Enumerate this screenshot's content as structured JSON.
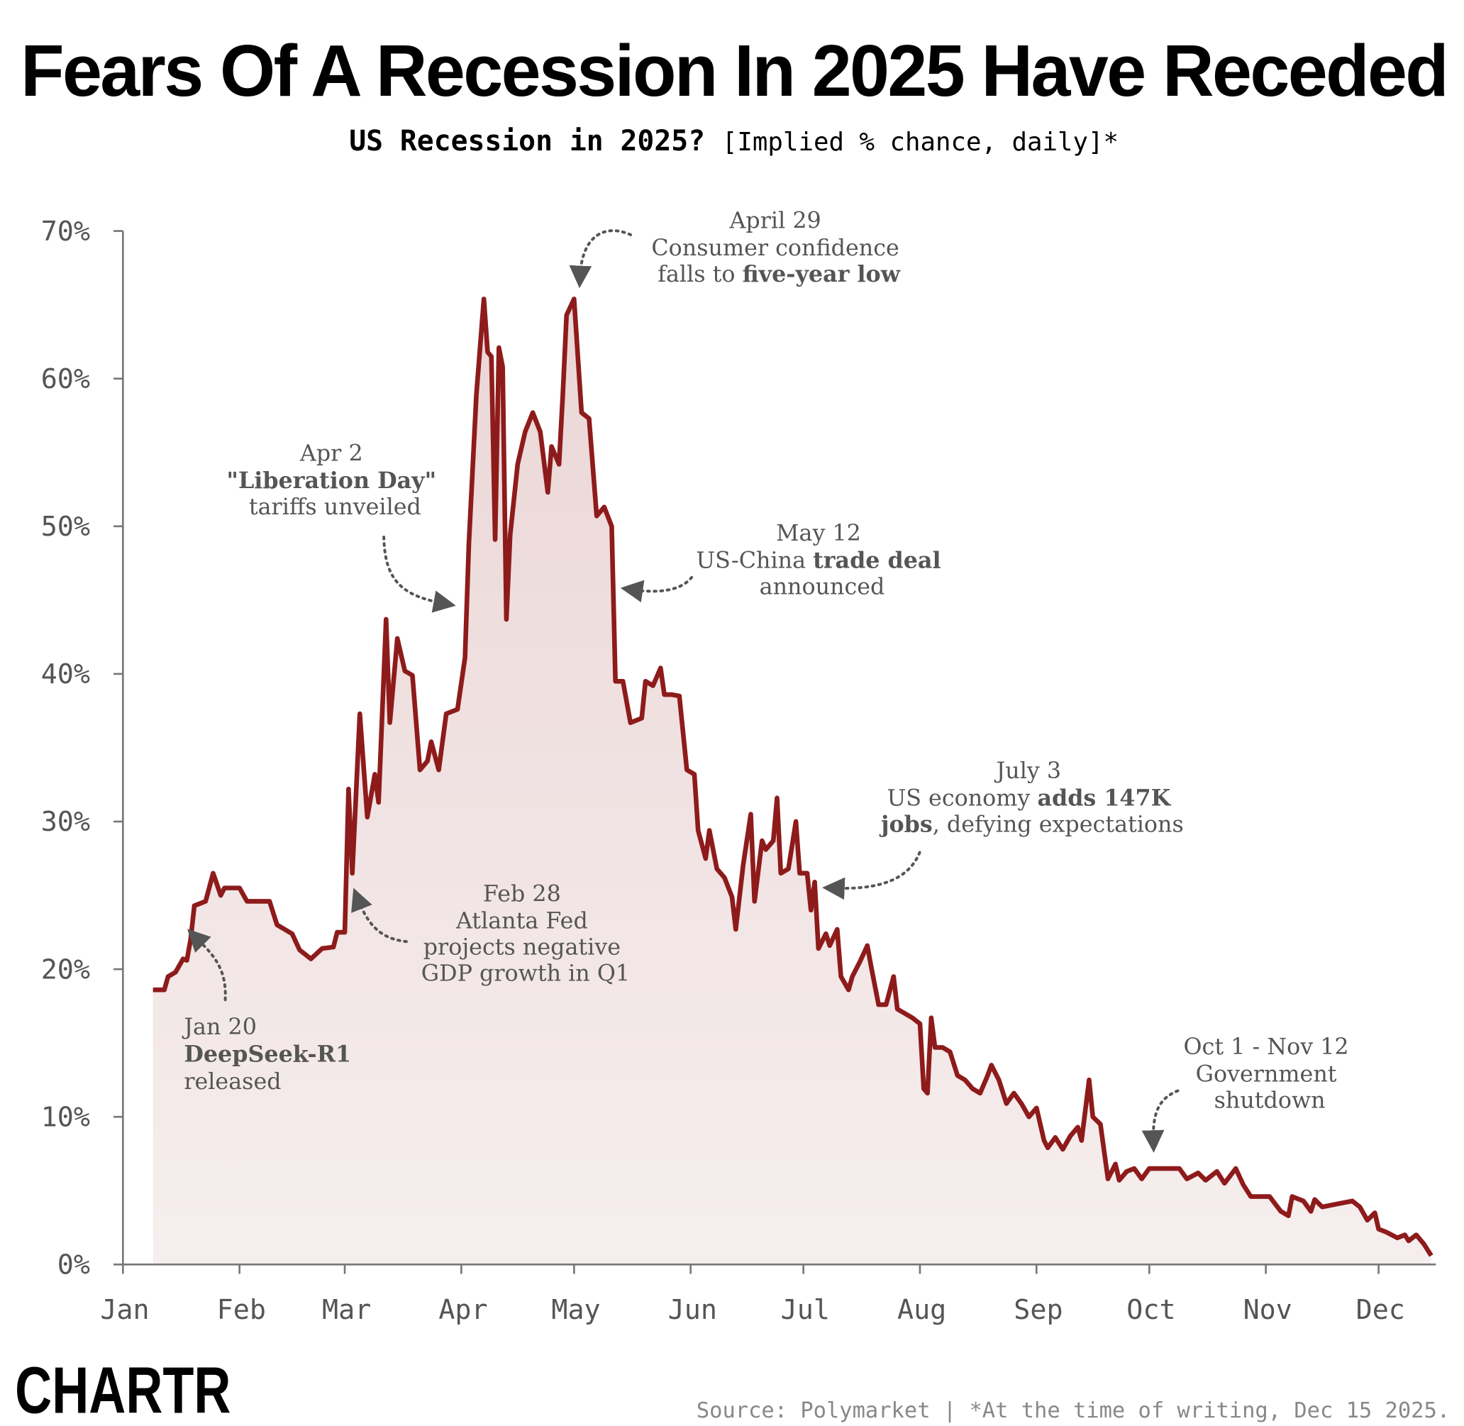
{
  "chart_data": {
    "type": "area",
    "title": "Fears Of A Recession In 2025 Have Receded",
    "subtitle_bold": "US Recession in 2025?",
    "subtitle_rest": "[Implied % chance, daily]*",
    "xlabel": "",
    "ylabel": "",
    "ylim": [
      0,
      70
    ],
    "y_ticks": [
      "0%",
      "10%",
      "20%",
      "30%",
      "40%",
      "50%",
      "60%",
      "70%"
    ],
    "x_ticks": [
      "Jan",
      "Feb",
      "Mar",
      "Apr",
      "May",
      "Jun",
      "Jul",
      "Aug",
      "Sep",
      "Oct",
      "Nov",
      "Dec"
    ],
    "grid": false,
    "line_color": "#8e1b1b",
    "fill_color": "#f0dcdc",
    "points": [
      [
        "2025-01-09",
        18.6
      ],
      [
        "2025-01-12",
        18.6
      ],
      [
        "2025-01-13",
        19.5
      ],
      [
        "2025-01-15",
        19.8
      ],
      [
        "2025-01-17",
        20.7
      ],
      [
        "2025-01-18",
        20.6
      ],
      [
        "2025-01-19",
        22
      ],
      [
        "2025-01-20",
        24.3
      ],
      [
        "2025-01-23",
        24.6
      ],
      [
        "2025-01-25",
        26.5
      ],
      [
        "2025-01-27",
        25
      ],
      [
        "2025-01-28",
        25.5
      ],
      [
        "2025-02-01",
        25.5
      ],
      [
        "2025-02-03",
        24.6
      ],
      [
        "2025-02-09",
        24.6
      ],
      [
        "2025-02-11",
        23
      ],
      [
        "2025-02-15",
        22.4
      ],
      [
        "2025-02-17",
        21.3
      ],
      [
        "2025-02-20",
        20.7
      ],
      [
        "2025-02-23",
        21.4
      ],
      [
        "2025-02-26",
        21.5
      ],
      [
        "2025-02-27",
        22.5
      ],
      [
        "2025-03-01",
        22.5
      ],
      [
        "2025-03-02",
        32.2
      ],
      [
        "2025-03-03",
        26.5
      ],
      [
        "2025-03-05",
        37.3
      ],
      [
        "2025-03-07",
        30.3
      ],
      [
        "2025-03-09",
        33.2
      ],
      [
        "2025-03-10",
        31.3
      ],
      [
        "2025-03-12",
        43.7
      ],
      [
        "2025-03-13",
        36.7
      ],
      [
        "2025-03-15",
        42.4
      ],
      [
        "2025-03-17",
        40.2
      ],
      [
        "2025-03-19",
        39.9
      ],
      [
        "2025-03-21",
        33.5
      ],
      [
        "2025-03-23",
        34.1
      ],
      [
        "2025-03-24",
        35.4
      ],
      [
        "2025-03-26",
        33.5
      ],
      [
        "2025-03-28",
        37.3
      ],
      [
        "2025-03-31",
        37.6
      ],
      [
        "2025-04-02",
        41.1
      ],
      [
        "2025-04-03",
        48.8
      ],
      [
        "2025-04-05",
        58.9
      ],
      [
        "2025-04-07",
        65.4
      ],
      [
        "2025-04-08",
        61.8
      ],
      [
        "2025-04-09",
        61.5
      ],
      [
        "2025-04-10",
        49.1
      ],
      [
        "2025-04-11",
        62.1
      ],
      [
        "2025-04-12",
        60.8
      ],
      [
        "2025-04-13",
        43.7
      ],
      [
        "2025-04-14",
        49.4
      ],
      [
        "2025-04-16",
        54.2
      ],
      [
        "2025-04-18",
        56.4
      ],
      [
        "2025-04-20",
        57.7
      ],
      [
        "2025-04-22",
        56.4
      ],
      [
        "2025-04-24",
        52.3
      ],
      [
        "2025-04-25",
        55.4
      ],
      [
        "2025-04-27",
        54.2
      ],
      [
        "2025-04-28",
        58.9
      ],
      [
        "2025-04-29",
        64.3
      ],
      [
        "2025-05-01",
        65.4
      ],
      [
        "2025-05-03",
        57.7
      ],
      [
        "2025-05-05",
        57.3
      ],
      [
        "2025-05-07",
        50.7
      ],
      [
        "2025-05-09",
        51.3
      ],
      [
        "2025-05-11",
        50
      ],
      [
        "2025-05-12",
        39.5
      ],
      [
        "2025-05-14",
        39.5
      ],
      [
        "2025-05-16",
        36.7
      ],
      [
        "2025-05-19",
        37
      ],
      [
        "2025-05-20",
        39.5
      ],
      [
        "2025-05-22",
        39.2
      ],
      [
        "2025-05-24",
        40.4
      ],
      [
        "2025-05-25",
        38.6
      ],
      [
        "2025-05-27",
        38.6
      ],
      [
        "2025-05-29",
        38.5
      ],
      [
        "2025-05-31",
        33.5
      ],
      [
        "2025-06-02",
        33.2
      ],
      [
        "2025-06-03",
        29.4
      ],
      [
        "2025-06-05",
        27.5
      ],
      [
        "2025-06-06",
        29.4
      ],
      [
        "2025-06-08",
        26.8
      ],
      [
        "2025-06-10",
        26.2
      ],
      [
        "2025-06-12",
        24.9
      ],
      [
        "2025-06-13",
        22.7
      ],
      [
        "2025-06-15",
        27.1
      ],
      [
        "2025-06-17",
        30.5
      ],
      [
        "2025-06-18",
        24.6
      ],
      [
        "2025-06-20",
        28.7
      ],
      [
        "2025-06-21",
        28.1
      ],
      [
        "2025-06-23",
        28.7
      ],
      [
        "2025-06-24",
        31.6
      ],
      [
        "2025-06-25",
        26.5
      ],
      [
        "2025-06-27",
        26.8
      ],
      [
        "2025-06-29",
        30
      ],
      [
        "2025-06-30",
        26.5
      ],
      [
        "2025-07-02",
        26.5
      ],
      [
        "2025-07-03",
        24
      ],
      [
        "2025-07-04",
        25.9
      ],
      [
        "2025-07-05",
        21.4
      ],
      [
        "2025-07-07",
        22.4
      ],
      [
        "2025-07-08",
        21.6
      ],
      [
        "2025-07-10",
        22.7
      ],
      [
        "2025-07-11",
        19.5
      ],
      [
        "2025-07-13",
        18.6
      ],
      [
        "2025-07-14",
        19.5
      ],
      [
        "2025-07-16",
        20.5
      ],
      [
        "2025-07-18",
        21.6
      ],
      [
        "2025-07-19",
        20.2
      ],
      [
        "2025-07-21",
        17.6
      ],
      [
        "2025-07-23",
        17.6
      ],
      [
        "2025-07-25",
        19.5
      ],
      [
        "2025-07-26",
        17.3
      ],
      [
        "2025-07-28",
        17
      ],
      [
        "2025-07-30",
        16.7
      ],
      [
        "2025-08-01",
        16.3
      ],
      [
        "2025-08-02",
        11.9
      ],
      [
        "2025-08-03",
        11.6
      ],
      [
        "2025-08-04",
        16.7
      ],
      [
        "2025-08-05",
        14.7
      ],
      [
        "2025-08-07",
        14.7
      ],
      [
        "2025-08-09",
        14.4
      ],
      [
        "2025-08-11",
        12.8
      ],
      [
        "2025-08-13",
        12.5
      ],
      [
        "2025-08-15",
        11.9
      ],
      [
        "2025-08-17",
        11.6
      ],
      [
        "2025-08-19",
        12.8
      ],
      [
        "2025-08-20",
        13.5
      ],
      [
        "2025-08-22",
        12.5
      ],
      [
        "2025-08-24",
        10.9
      ],
      [
        "2025-08-26",
        11.6
      ],
      [
        "2025-08-28",
        10.9
      ],
      [
        "2025-08-30",
        10
      ],
      [
        "2025-09-01",
        10.6
      ],
      [
        "2025-09-03",
        8.4
      ],
      [
        "2025-09-04",
        7.9
      ],
      [
        "2025-09-06",
        8.6
      ],
      [
        "2025-09-08",
        7.8
      ],
      [
        "2025-09-10",
        8.7
      ],
      [
        "2025-09-12",
        9.3
      ],
      [
        "2025-09-13",
        8.4
      ],
      [
        "2025-09-15",
        12.5
      ],
      [
        "2025-09-16",
        10
      ],
      [
        "2025-09-18",
        9.5
      ],
      [
        "2025-09-20",
        5.8
      ],
      [
        "2025-09-22",
        6.8
      ],
      [
        "2025-09-23",
        5.7
      ],
      [
        "2025-09-25",
        6.3
      ],
      [
        "2025-09-27",
        6.5
      ],
      [
        "2025-09-29",
        5.8
      ],
      [
        "2025-10-01",
        6.5
      ],
      [
        "2025-10-09",
        6.5
      ],
      [
        "2025-10-11",
        5.8
      ],
      [
        "2025-10-14",
        6.2
      ],
      [
        "2025-10-16",
        5.7
      ],
      [
        "2025-10-19",
        6.3
      ],
      [
        "2025-10-21",
        5.5
      ],
      [
        "2025-10-24",
        6.5
      ],
      [
        "2025-10-26",
        5.4
      ],
      [
        "2025-10-28",
        4.6
      ],
      [
        "2025-11-02",
        4.6
      ],
      [
        "2025-11-05",
        3.6
      ],
      [
        "2025-11-07",
        3.3
      ],
      [
        "2025-11-08",
        4.6
      ],
      [
        "2025-11-11",
        4.3
      ],
      [
        "2025-11-13",
        3.6
      ],
      [
        "2025-11-14",
        4.4
      ],
      [
        "2025-11-16",
        3.9
      ],
      [
        "2025-11-20",
        4.1
      ],
      [
        "2025-11-24",
        4.3
      ],
      [
        "2025-11-26",
        3.9
      ],
      [
        "2025-11-28",
        3
      ],
      [
        "2025-11-30",
        3.5
      ],
      [
        "2025-12-01",
        2.4
      ],
      [
        "2025-12-03",
        2.2
      ],
      [
        "2025-12-06",
        1.8
      ],
      [
        "2025-12-08",
        2.0
      ],
      [
        "2025-12-09",
        1.6
      ],
      [
        "2025-12-11",
        2.0
      ],
      [
        "2025-12-13",
        1.4
      ],
      [
        "2025-12-14",
        1.0
      ],
      [
        "2025-12-15",
        0.6
      ]
    ],
    "annotations": [
      {
        "lines": [
          "Jan 20",
          "DeepSeek-R1",
          "released"
        ],
        "bold_line": 1
      },
      {
        "lines": [
          "Feb 28",
          "Atlanta Fed",
          "projects negative",
          "GDP growth in Q1"
        ]
      },
      {
        "lines": [
          "Apr 2",
          "\"Liberation Day\"",
          "tariffs unveiled"
        ],
        "bold_line": 1
      },
      {
        "lines": [
          "April 29",
          "Consumer confidence"
        ],
        "line3_plain": "falls to ",
        "line3_bold": "five-year low"
      },
      {
        "lines": [
          "May 12",
          "announced"
        ],
        "line2_plain": "US-China ",
        "line2_bold": "trade deal"
      },
      {
        "lines": [
          "July 3"
        ],
        "line2_plain": "US economy ",
        "line2_bold": "adds 147K",
        "line3_bold": "jobs",
        "line3_plain": ", defying expectations"
      },
      {
        "lines": [
          "Oct 1 - Nov 12",
          "Government",
          "shutdown"
        ]
      }
    ]
  },
  "footer": {
    "source": "Source: Polymarket | *At the time of writing, Dec 15 2025.",
    "logo": "CHARTR"
  }
}
